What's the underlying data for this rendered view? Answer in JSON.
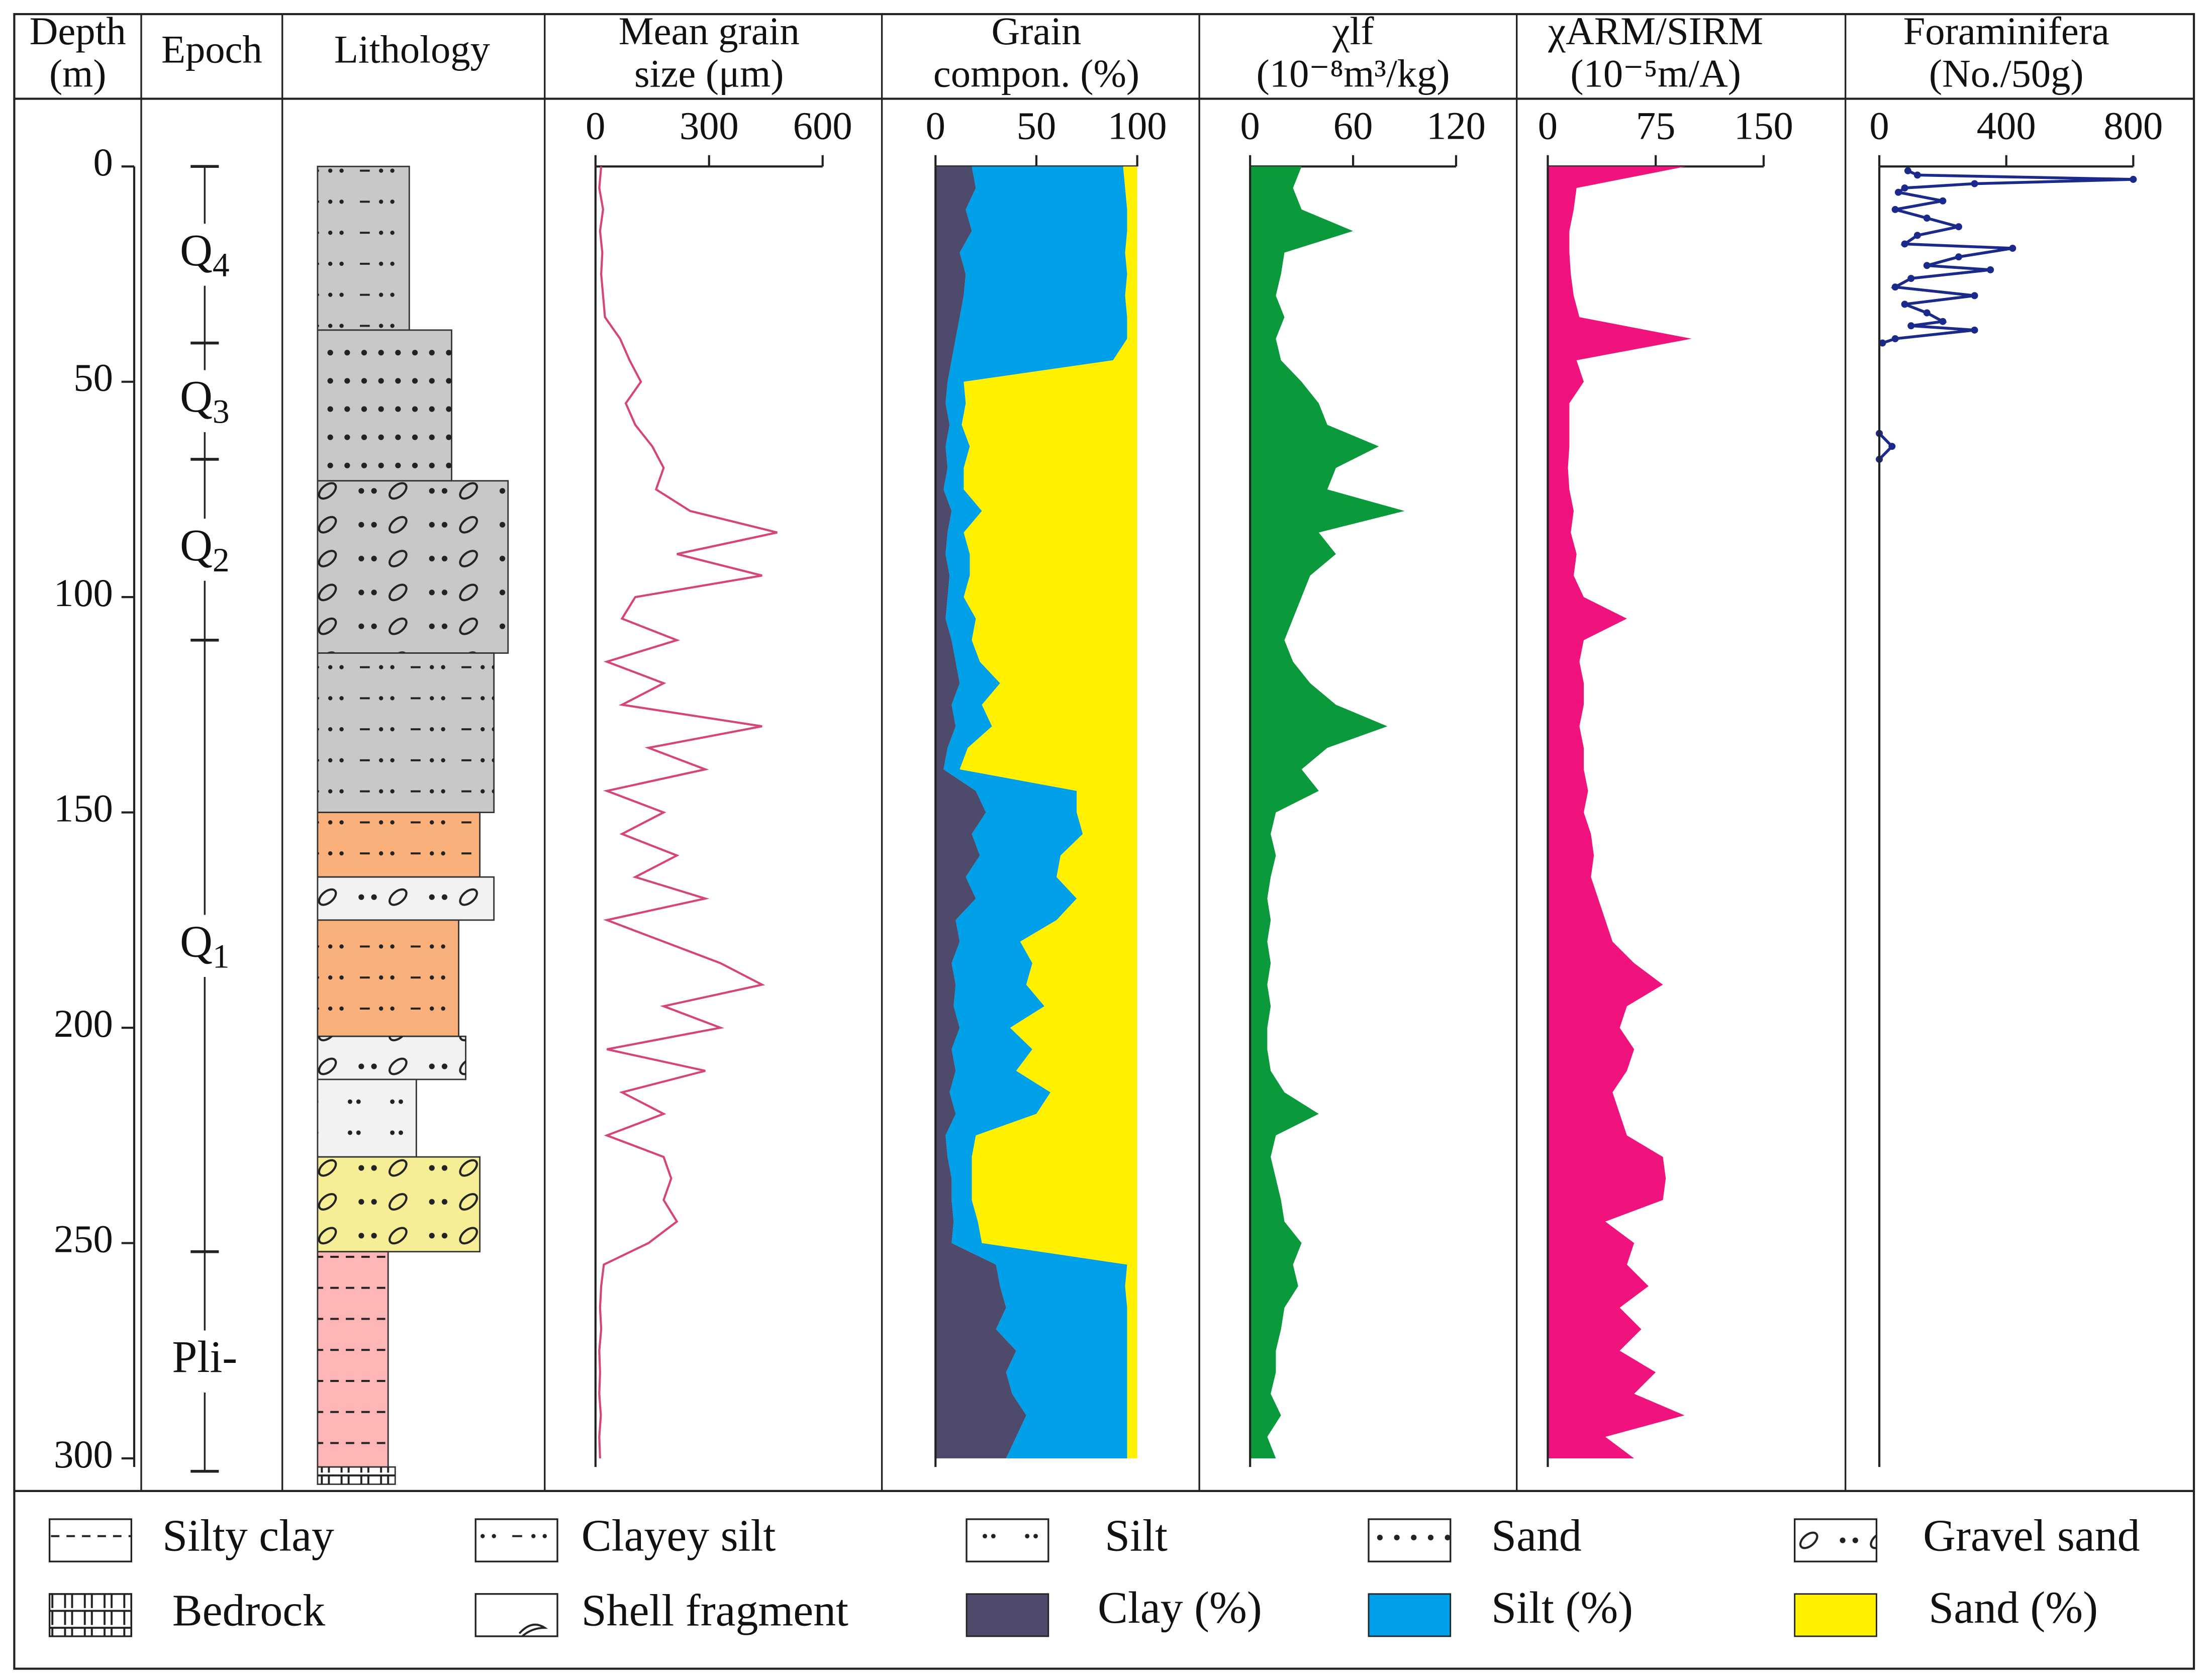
{
  "chart_data": {
    "type": "log",
    "ylabel": [
      "Depth",
      "(m)"
    ],
    "epoch_title": "Epoch",
    "lithology_title": "Lithology",
    "ylim": [
      0,
      302
    ],
    "yticks": [
      0,
      50,
      100,
      150,
      200,
      250,
      300
    ],
    "depth": [
      0,
      5,
      10,
      15,
      20,
      25,
      30,
      35,
      40,
      45,
      50,
      55,
      60,
      65,
      70,
      75,
      80,
      85,
      90,
      95,
      100,
      105,
      110,
      115,
      120,
      125,
      130,
      135,
      140,
      145,
      150,
      155,
      160,
      165,
      170,
      175,
      180,
      185,
      190,
      195,
      200,
      205,
      210,
      215,
      220,
      225,
      230,
      235,
      240,
      245,
      250,
      255,
      260,
      265,
      270,
      275,
      280,
      285,
      290,
      295,
      300
    ],
    "epochs": [
      {
        "name": "Q",
        "sub": "4",
        "top": 0,
        "bottom": 41
      },
      {
        "name": "Q",
        "sub": "3",
        "top": 41,
        "bottom": 68
      },
      {
        "name": "Q",
        "sub": "2",
        "top": 68,
        "bottom": 110
      },
      {
        "name": "Q",
        "sub": "1",
        "top": 110,
        "bottom": 252
      },
      {
        "name": "Pli-",
        "top": 252,
        "bottom": 303
      }
    ],
    "layers": [
      {
        "top": 0,
        "bottom": 38,
        "color": "#c8c8c8"
      },
      {
        "top": 38,
        "bottom": 73,
        "color": "#c8c8c8"
      },
      {
        "top": 73,
        "bottom": 113,
        "color": "#c8c8c8"
      },
      {
        "top": 113,
        "bottom": 150,
        "color": "#c8c8c8"
      },
      {
        "top": 150,
        "bottom": 165,
        "color": "#f9b07a"
      },
      {
        "top": 165,
        "bottom": 175,
        "color": "#f2f2f2"
      },
      {
        "top": 175,
        "bottom": 202,
        "color": "#f9b07a"
      },
      {
        "top": 202,
        "bottom": 212,
        "color": "#f2f2f2"
      },
      {
        "top": 212,
        "bottom": 230,
        "color": "#f2f2f2"
      },
      {
        "top": 230,
        "bottom": 252,
        "color": "#f5ee96"
      },
      {
        "top": 252,
        "bottom": 302,
        "color": "#fdb5b5"
      },
      {
        "top": 302,
        "bottom": 306,
        "color": "#ffffff"
      }
    ],
    "lithology_legend": [
      "Silty clay",
      "Clayey  silt",
      "Silt",
      "Sand",
      "Gravel sand",
      "Bedrock",
      "Shell fragment"
    ],
    "tracks": [
      {
        "type": "line",
        "title": [
          "Mean grain",
          "size (μm)"
        ],
        "xlim": [
          0,
          600
        ],
        "xticks": [
          0,
          300,
          600
        ],
        "series": [
          {
            "color": "#d6457a",
            "values": [
              15,
              10,
              20,
              12,
              18,
              15,
              20,
              25,
              65,
              90,
              120,
              80,
              105,
              150,
              180,
              160,
              250,
              480,
              215,
              440,
              105,
              70,
              215,
              30,
              180,
              70,
              440,
              140,
              290,
              30,
              180,
              70,
              215,
              105,
              290,
              30,
              180,
              330,
              440,
              180,
              330,
              30,
              290,
              70,
              180,
              30,
              180,
              200,
              180,
              215,
              140,
              22,
              15,
              12,
              15,
              10,
              12,
              10,
              14,
              10,
              12
            ]
          }
        ]
      },
      {
        "type": "stacked-area",
        "title": [
          "Grain",
          "compon. (%)"
        ],
        "xlim": [
          0,
          100
        ],
        "xticks": [
          0,
          50,
          100
        ],
        "series": [
          {
            "name": "Clay (%)",
            "color": "#4e4a6b",
            "values": [
              18,
              20,
              15,
              18,
              12,
              15,
              14,
              12,
              10,
              8,
              6,
              5,
              7,
              5,
              6,
              4,
              8,
              6,
              5,
              7,
              6,
              5,
              8,
              10,
              12,
              8,
              10,
              6,
              4,
              20,
              25,
              18,
              22,
              15,
              20,
              10,
              12,
              8,
              10,
              9,
              12,
              8,
              10,
              7,
              10,
              5,
              6,
              8,
              8,
              9,
              8,
              30,
              32,
              35,
              30,
              40,
              35,
              38,
              45,
              40,
              35
            ]
          },
          {
            "name": "Silt (%)",
            "color": "#00a0e9",
            "values": [
              75,
              74,
              80,
              77,
              82,
              80,
              80,
              83,
              85,
              80,
              8,
              10,
              6,
              12,
              8,
              10,
              15,
              8,
              12,
              10,
              8,
              15,
              10,
              12,
              20,
              15,
              18,
              10,
              8,
              50,
              45,
              55,
              40,
              45,
              50,
              50,
              30,
              40,
              35,
              45,
              25,
              40,
              30,
              50,
              40,
              15,
              12,
              10,
              10,
              12,
              15,
              65,
              62,
              60,
              65,
              55,
              60,
              57,
              50,
              55,
              60
            ]
          },
          {
            "name": "Sand (%)",
            "color": "#fff100",
            "values": [
              7,
              6,
              5,
              5,
              6,
              5,
              6,
              5,
              5,
              12,
              86,
              85,
              87,
              83,
              86,
              86,
              77,
              86,
              83,
              83,
              86,
              80,
              82,
              78,
              68,
              77,
              72,
              84,
              88,
              30,
              30,
              27,
              38,
              40,
              30,
              40,
              58,
              52,
              55,
              46,
              63,
              52,
              60,
              43,
              50,
              80,
              82,
              82,
              82,
              79,
              77,
              5,
              6,
              5,
              5,
              5,
              5,
              5,
              5,
              5,
              5
            ]
          }
        ]
      },
      {
        "type": "area",
        "title": [
          "χlf",
          "(10⁻⁸m³/kg)"
        ],
        "xlim": [
          0,
          120
        ],
        "xticks": [
          0,
          60,
          120
        ],
        "series": [
          {
            "color": "#0a9a3c",
            "values": [
              30,
              25,
              30,
              60,
              20,
              18,
              15,
              20,
              15,
              18,
              30,
              40,
              45,
              75,
              50,
              45,
              90,
              40,
              50,
              35,
              30,
              25,
              20,
              25,
              35,
              50,
              80,
              45,
              30,
              40,
              15,
              12,
              15,
              12,
              10,
              12,
              10,
              12,
              10,
              12,
              10,
              10,
              12,
              20,
              40,
              15,
              12,
              15,
              18,
              20,
              30,
              25,
              28,
              20,
              18,
              15,
              15,
              12,
              18,
              10,
              15
            ]
          }
        ]
      },
      {
        "type": "area",
        "title": [
          "χARM/SIRM",
          "(10⁻⁵m/A)"
        ],
        "xlim": [
          0,
          150
        ],
        "xticks": [
          0,
          75,
          150
        ],
        "series": [
          {
            "color": "#f0137e",
            "values": [
              96,
              20,
              18,
              15,
              15,
              16,
              18,
              22,
              100,
              20,
              25,
              15,
              15,
              15,
              14,
              15,
              18,
              16,
              20,
              18,
              25,
              55,
              25,
              22,
              25,
              25,
              22,
              25,
              25,
              28,
              25,
              30,
              32,
              30,
              35,
              40,
              45,
              60,
              80,
              55,
              50,
              60,
              55,
              45,
              50,
              55,
              80,
              82,
              80,
              40,
              60,
              55,
              70,
              50,
              65,
              50,
              75,
              60,
              95,
              40,
              60
            ]
          }
        ]
      },
      {
        "type": "line-markers",
        "title": [
          "Foraminifera",
          "(No./50g)"
        ],
        "xlim": [
          0,
          800
        ],
        "xticks": [
          0,
          400,
          800
        ],
        "depth": [
          1,
          2,
          3,
          4,
          5,
          6,
          8,
          10,
          12,
          14,
          16,
          18,
          19,
          21,
          23,
          24,
          26,
          28,
          30,
          32,
          34,
          36,
          37,
          38,
          40,
          41,
          50,
          62,
          65,
          68
        ],
        "series": [
          {
            "color": "#1b2a8a",
            "values": [
              90,
              120,
              800,
              300,
              80,
              60,
              200,
              50,
              150,
              250,
              120,
              80,
              420,
              250,
              150,
              350,
              100,
              50,
              300,
              80,
              150,
              200,
              100,
              300,
              50,
              10,
              null,
              0,
              40,
              0
            ]
          }
        ]
      }
    ]
  }
}
